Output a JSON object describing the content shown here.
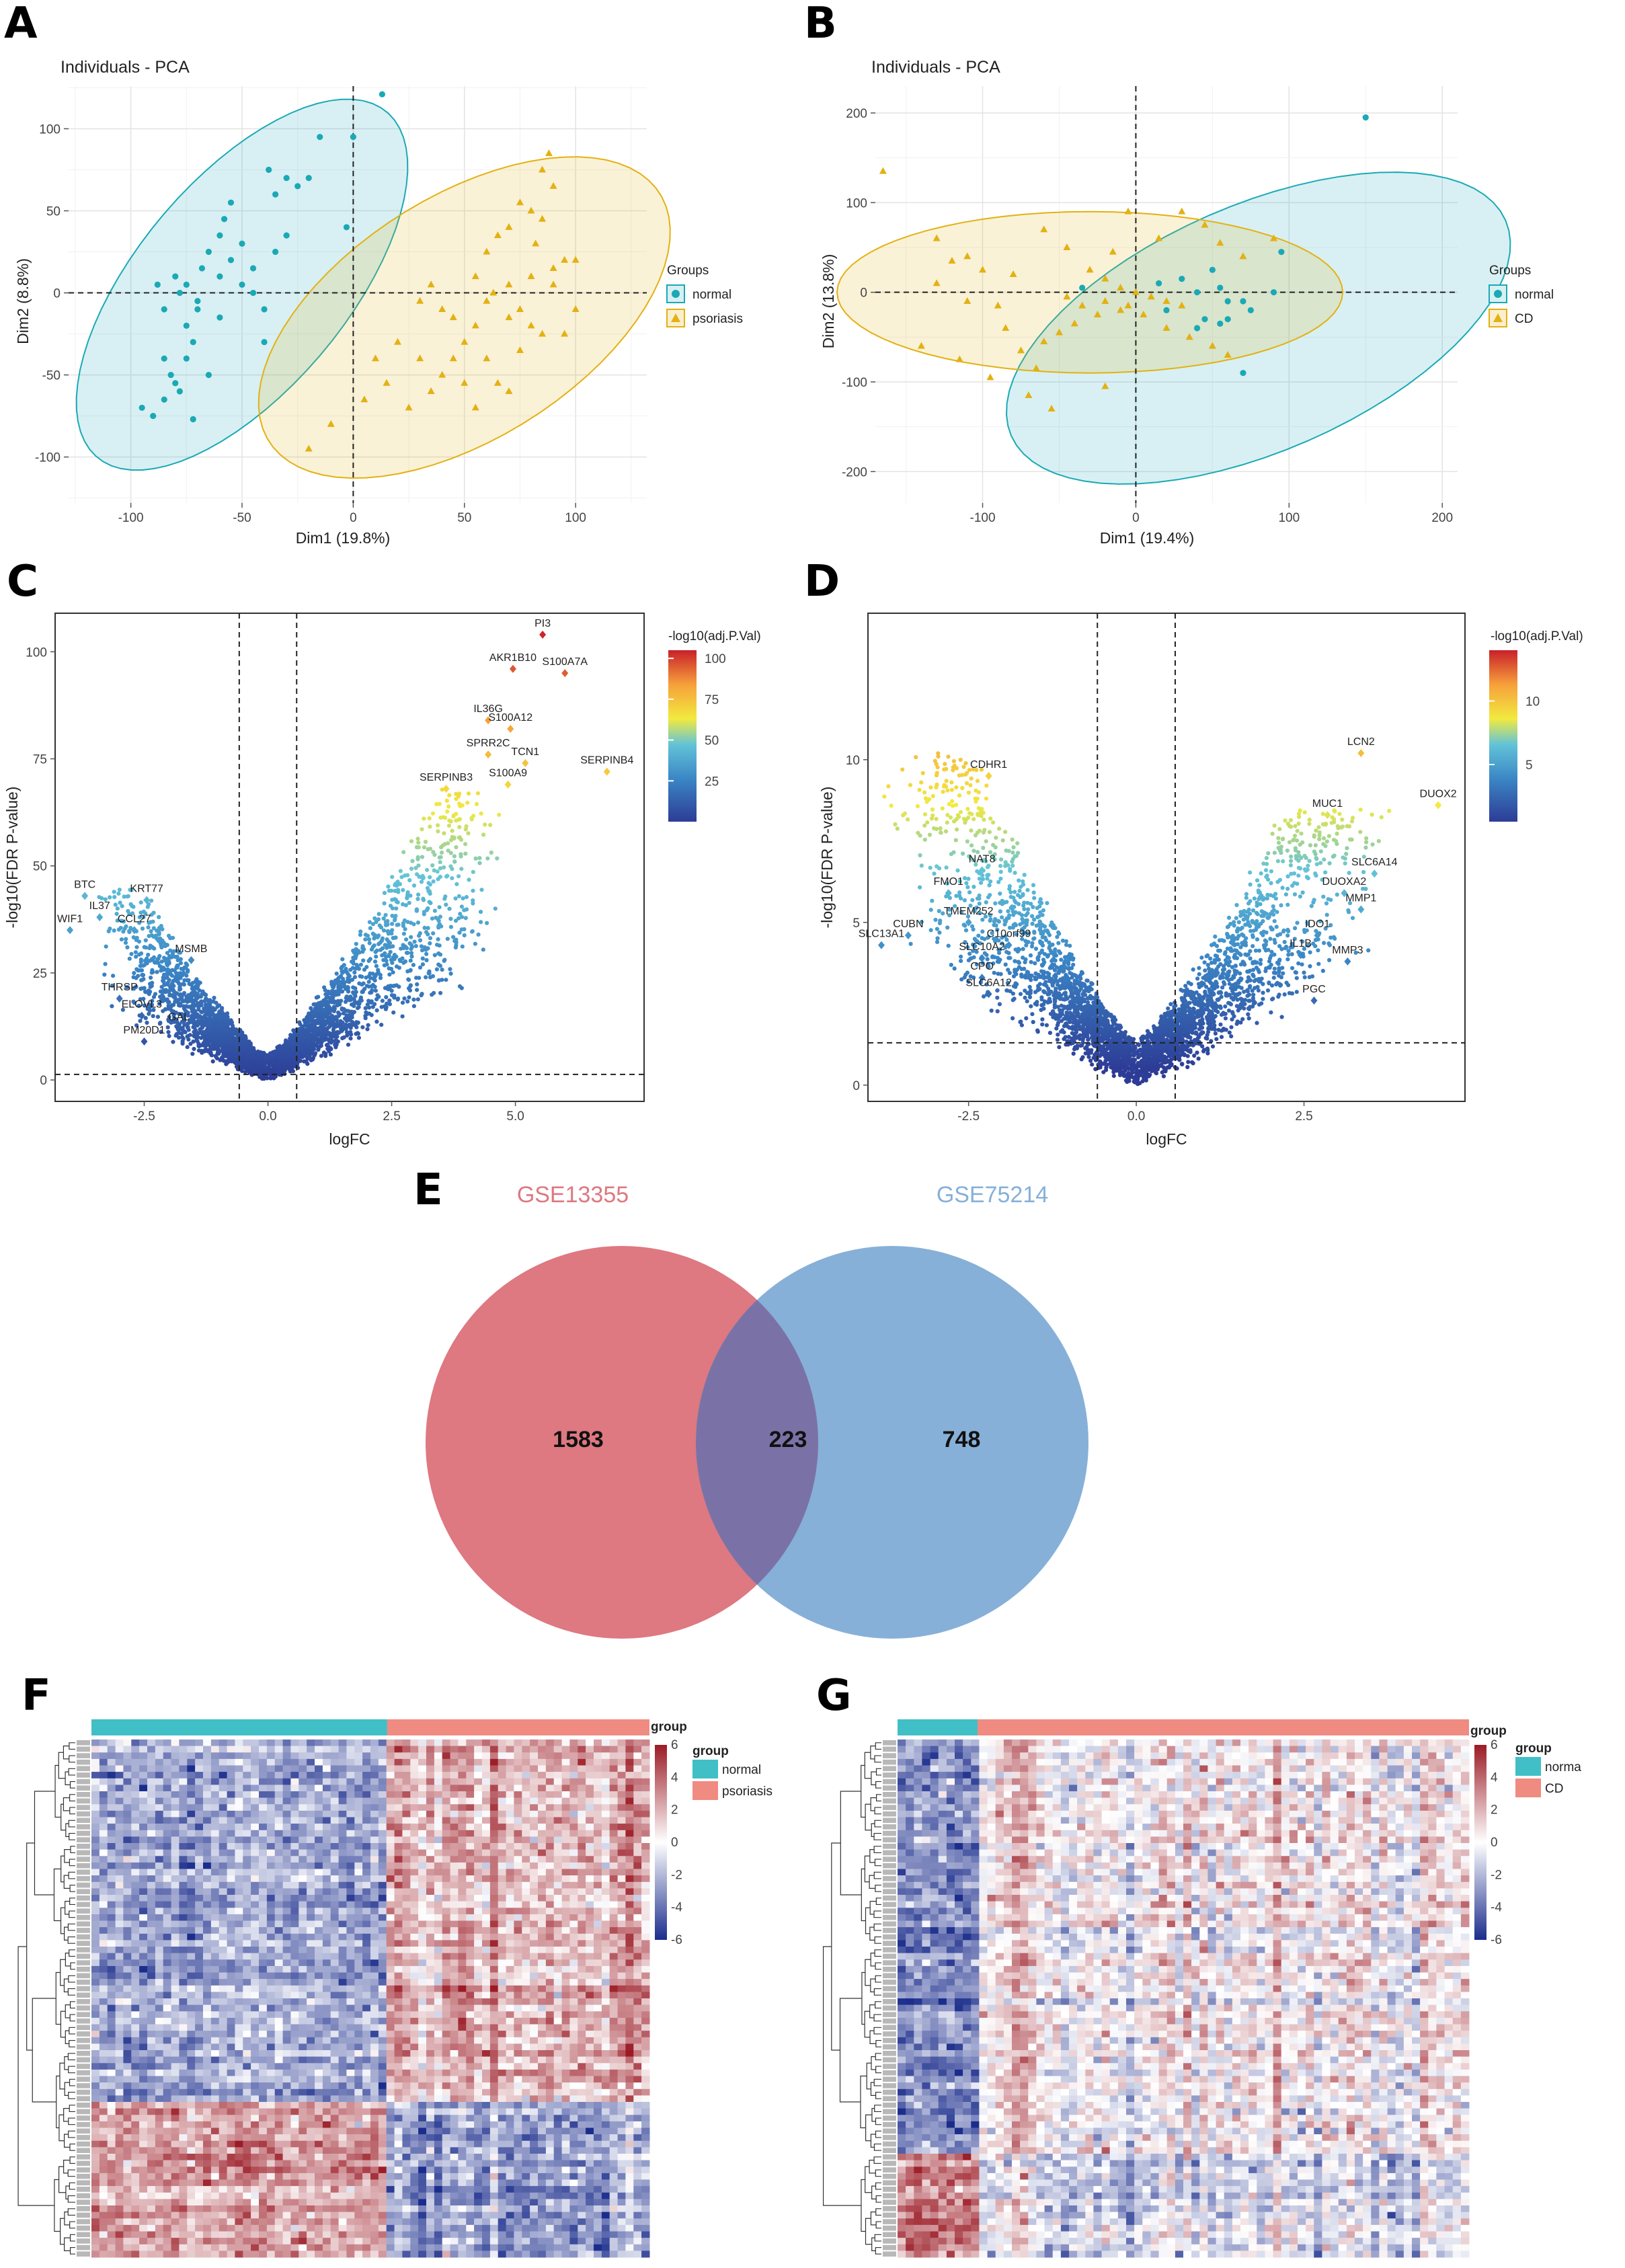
{
  "panels": {
    "A": "A",
    "B": "B",
    "C": "C",
    "D": "D",
    "E": "E",
    "F": "F",
    "G": "G"
  },
  "colors": {
    "normal": "#1aa9b5",
    "disease": "#e3b112",
    "venn_left": "#de7881",
    "venn_right": "#86b0d8",
    "venn_overlap": "#7a72a6",
    "heat_low": "#1b2d8c",
    "heat_mid": "#ffffff",
    "heat_high": "#9b1b25",
    "group_normal": "#40bfc6",
    "group_disease": "#f08b82"
  },
  "chart_data": [
    {
      "id": "A",
      "type": "scatter",
      "title": "Individuals - PCA",
      "xlabel": "Dim1 (19.8%)",
      "ylabel": "Dim2 (8.8%)",
      "xlim": [
        -128,
        132
      ],
      "ylim": [
        -128,
        126
      ],
      "xticks": [
        -100,
        -50,
        0,
        50,
        100
      ],
      "yticks": [
        -100,
        -50,
        0,
        50,
        100
      ],
      "legend_title": "Groups",
      "series": [
        {
          "name": "normal",
          "points": [
            [
              -95,
              -70
            ],
            [
              -90,
              -75
            ],
            [
              -85,
              -65
            ],
            [
              -85,
              -40
            ],
            [
              -82,
              -50
            ],
            [
              -80,
              -55
            ],
            [
              -78,
              -60
            ],
            [
              -75,
              -40
            ],
            [
              -72,
              -30
            ],
            [
              -75,
              -20
            ],
            [
              -70,
              -10
            ],
            [
              -85,
              -10
            ],
            [
              -88,
              5
            ],
            [
              -80,
              10
            ],
            [
              -78,
              0
            ],
            [
              -75,
              5
            ],
            [
              -70,
              -5
            ],
            [
              -68,
              15
            ],
            [
              -60,
              10
            ],
            [
              -55,
              20
            ],
            [
              -50,
              30
            ],
            [
              -65,
              25
            ],
            [
              -60,
              35
            ],
            [
              -58,
              45
            ],
            [
              -55,
              55
            ],
            [
              -50,
              5
            ],
            [
              -45,
              15
            ],
            [
              -45,
              0
            ],
            [
              -40,
              -10
            ],
            [
              -35,
              25
            ],
            [
              -30,
              35
            ],
            [
              -35,
              60
            ],
            [
              -38,
              75
            ],
            [
              -30,
              70
            ],
            [
              -25,
              65
            ],
            [
              -20,
              70
            ],
            [
              -15,
              95
            ],
            [
              0,
              95
            ],
            [
              -3,
              40
            ],
            [
              13,
              121
            ],
            [
              -72,
              -77
            ],
            [
              -60,
              -15
            ],
            [
              -40,
              -30
            ],
            [
              -65,
              -50
            ]
          ]
        },
        {
          "name": "psoriasis",
          "points": [
            [
              -20,
              -95
            ],
            [
              -10,
              -80
            ],
            [
              5,
              -65
            ],
            [
              15,
              -55
            ],
            [
              25,
              -70
            ],
            [
              35,
              -60
            ],
            [
              40,
              -50
            ],
            [
              45,
              -40
            ],
            [
              50,
              -30
            ],
            [
              55,
              -20
            ],
            [
              60,
              -40
            ],
            [
              65,
              -55
            ],
            [
              70,
              -60
            ],
            [
              75,
              -35
            ],
            [
              80,
              -20
            ],
            [
              85,
              -25
            ],
            [
              60,
              -5
            ],
            [
              70,
              5
            ],
            [
              80,
              10
            ],
            [
              90,
              15
            ],
            [
              95,
              20
            ],
            [
              100,
              20
            ],
            [
              85,
              45
            ],
            [
              80,
              50
            ],
            [
              75,
              55
            ],
            [
              70,
              40
            ],
            [
              65,
              35
            ],
            [
              85,
              75
            ],
            [
              90,
              65
            ],
            [
              88,
              85
            ],
            [
              82,
              30
            ],
            [
              40,
              -10
            ],
            [
              30,
              -5
            ],
            [
              35,
              5
            ],
            [
              55,
              10
            ],
            [
              63,
              0
            ],
            [
              45,
              -15
            ],
            [
              75,
              -10
            ],
            [
              60,
              25
            ],
            [
              95,
              -25
            ],
            [
              100,
              -10
            ],
            [
              20,
              -30
            ],
            [
              10,
              -40
            ],
            [
              30,
              -40
            ],
            [
              50,
              -55
            ],
            [
              70,
              -15
            ],
            [
              90,
              5
            ],
            [
              55,
              -70
            ]
          ]
        }
      ],
      "ellipses": [
        {
          "series": "normal",
          "center": [
            -50,
            5
          ],
          "semi_axes": [
            125,
            52
          ],
          "rotation_deg": 62
        },
        {
          "series": "psoriasis",
          "center": [
            50,
            -15
          ],
          "semi_axes": [
            118,
            65
          ],
          "rotation_deg": 48
        }
      ]
    },
    {
      "id": "B",
      "type": "scatter",
      "title": "Individuals - PCA",
      "xlabel": "Dim1 (19.4%)",
      "ylabel": "Dim2 (13.8%)",
      "xlim": [
        -170,
        210
      ],
      "ylim": [
        -235,
        230
      ],
      "xticks": [
        -100,
        0,
        100,
        200
      ],
      "yticks": [
        -200,
        -100,
        0,
        100,
        200
      ],
      "legend_title": "Groups",
      "series": [
        {
          "name": "normal",
          "points": [
            [
              150,
              195
            ],
            [
              95,
              45
            ],
            [
              60,
              -10
            ],
            [
              70,
              -10
            ],
            [
              90,
              0
            ],
            [
              55,
              5
            ],
            [
              45,
              -30
            ],
            [
              40,
              -40
            ],
            [
              70,
              -90
            ],
            [
              55,
              -35
            ],
            [
              15,
              10
            ],
            [
              40,
              0
            ],
            [
              30,
              15
            ],
            [
              60,
              -30
            ],
            [
              75,
              -20
            ],
            [
              -35,
              5
            ],
            [
              20,
              -20
            ],
            [
              50,
              25
            ]
          ]
        },
        {
          "name": "CD",
          "points": [
            [
              -165,
              135
            ],
            [
              -140,
              -60
            ],
            [
              -115,
              -75
            ],
            [
              -130,
              60
            ],
            [
              -110,
              40
            ],
            [
              -100,
              25
            ],
            [
              -80,
              20
            ],
            [
              -60,
              70
            ],
            [
              -45,
              50
            ],
            [
              -30,
              25
            ],
            [
              -20,
              15
            ],
            [
              -10,
              5
            ],
            [
              0,
              0
            ],
            [
              10,
              -5
            ],
            [
              20,
              -10
            ],
            [
              30,
              -15
            ],
            [
              -10,
              -20
            ],
            [
              -25,
              -25
            ],
            [
              -40,
              -35
            ],
            [
              -50,
              -45
            ],
            [
              -60,
              -55
            ],
            [
              -75,
              -65
            ],
            [
              -90,
              -15
            ],
            [
              -85,
              -40
            ],
            [
              -55,
              -130
            ],
            [
              -70,
              -115
            ],
            [
              -45,
              -5
            ],
            [
              -35,
              -15
            ],
            [
              -20,
              -10
            ],
            [
              -5,
              -15
            ],
            [
              5,
              -25
            ],
            [
              20,
              -40
            ],
            [
              35,
              -50
            ],
            [
              50,
              -60
            ],
            [
              60,
              -70
            ],
            [
              -5,
              90
            ],
            [
              30,
              90
            ],
            [
              45,
              75
            ],
            [
              55,
              55
            ],
            [
              70,
              40
            ],
            [
              90,
              60
            ],
            [
              -15,
              45
            ],
            [
              -110,
              -10
            ],
            [
              -130,
              10
            ],
            [
              -20,
              -105
            ],
            [
              -120,
              35
            ],
            [
              -95,
              -95
            ],
            [
              15,
              60
            ],
            [
              -65,
              -85
            ]
          ]
        }
      ],
      "ellipses": [
        {
          "series": "normal",
          "center": [
            80,
            -40
          ],
          "semi_axes": [
            210,
            115
          ],
          "rotation_deg": 48
        },
        {
          "series": "CD",
          "center": [
            -30,
            0
          ],
          "semi_axes": [
            165,
            90
          ],
          "rotation_deg": 0
        }
      ]
    },
    {
      "id": "C",
      "type": "scatter",
      "subtype": "volcano",
      "xlabel": "logFC",
      "ylabel": "-log10(FDR P-value)",
      "xlim": [
        -4.3,
        7.6
      ],
      "ylim": [
        -5,
        109
      ],
      "xticks": [
        -2.5,
        0.0,
        2.5,
        5.0
      ],
      "xtick_labels": [
        "-2.5",
        "0.0",
        "2.5",
        "5.0"
      ],
      "yticks": [
        0,
        25,
        50,
        75,
        100
      ],
      "vlines": [
        -0.58,
        0.58
      ],
      "hline": 1.3,
      "color_scale": {
        "title": "-log10(adj.P.Val)",
        "min": 0,
        "max": 105,
        "ticks": [
          25,
          50,
          75,
          100
        ]
      },
      "labeled_points": [
        {
          "gene": "PI3",
          "x": 5.55,
          "y": 104
        },
        {
          "gene": "AKR1B10",
          "x": 4.95,
          "y": 96
        },
        {
          "gene": "S100A7A",
          "x": 6.0,
          "y": 95
        },
        {
          "gene": "IL36G",
          "x": 4.45,
          "y": 84
        },
        {
          "gene": "S100A12",
          "x": 4.9,
          "y": 82
        },
        {
          "gene": "SERPINB4",
          "x": 6.85,
          "y": 72
        },
        {
          "gene": "SPRR2C",
          "x": 4.45,
          "y": 76
        },
        {
          "gene": "TCN1",
          "x": 5.2,
          "y": 74
        },
        {
          "gene": "SERPINB3",
          "x": 3.6,
          "y": 68
        },
        {
          "gene": "S100A9",
          "x": 4.85,
          "y": 69
        },
        {
          "gene": "BTC",
          "x": -3.7,
          "y": 43
        },
        {
          "gene": "KRT77",
          "x": -2.45,
          "y": 42
        },
        {
          "gene": "IL37",
          "x": -3.4,
          "y": 38
        },
        {
          "gene": "WIF1",
          "x": -4.0,
          "y": 35
        },
        {
          "gene": "CCL27",
          "x": -2.7,
          "y": 35
        },
        {
          "gene": "MSMB",
          "x": -1.55,
          "y": 28
        },
        {
          "gene": "THRSP",
          "x": -3.0,
          "y": 19
        },
        {
          "gene": "ELOVL3",
          "x": -2.55,
          "y": 15
        },
        {
          "gene": "GAL",
          "x": -1.8,
          "y": 12
        },
        {
          "gene": "PM20D1",
          "x": -2.5,
          "y": 9
        }
      ]
    },
    {
      "id": "D",
      "type": "scatter",
      "subtype": "volcano",
      "xlabel": "logFC",
      "ylabel": "-log10(FDR P-value)",
      "xlim": [
        -4.0,
        4.9
      ],
      "ylim": [
        -0.5,
        14.5
      ],
      "xticks": [
        -2.5,
        0.0,
        2.5
      ],
      "xtick_labels": [
        "-2.5",
        "0.0",
        "2.5"
      ],
      "yticks": [
        0,
        5,
        10
      ],
      "vlines": [
        -0.58,
        0.58
      ],
      "hline": 1.3,
      "color_scale": {
        "title": "-log10(adj.P.Val)",
        "min": 0.5,
        "max": 14,
        "ticks": [
          5,
          10
        ]
      },
      "labeled_points": [
        {
          "gene": "LCN2",
          "x": 3.35,
          "y": 10.2
        },
        {
          "gene": "DUOX2",
          "x": 4.5,
          "y": 8.6
        },
        {
          "gene": "MUC1",
          "x": 2.85,
          "y": 8.3
        },
        {
          "gene": "SLC6A14",
          "x": 3.55,
          "y": 6.5
        },
        {
          "gene": "DUOXA2",
          "x": 3.1,
          "y": 5.9
        },
        {
          "gene": "MMP1",
          "x": 3.35,
          "y": 5.4
        },
        {
          "gene": "IDO1",
          "x": 2.7,
          "y": 4.6
        },
        {
          "gene": "IL1B",
          "x": 2.45,
          "y": 4.0
        },
        {
          "gene": "MMP3",
          "x": 3.15,
          "y": 3.8
        },
        {
          "gene": "PGC",
          "x": 2.65,
          "y": 2.6
        },
        {
          "gene": "CDHR1",
          "x": -2.2,
          "y": 9.5
        },
        {
          "gene": "NAT8",
          "x": -2.3,
          "y": 6.6
        },
        {
          "gene": "FMO1",
          "x": -2.8,
          "y": 5.9
        },
        {
          "gene": "TMEM252",
          "x": -2.5,
          "y": 5.0
        },
        {
          "gene": "CUBN",
          "x": -3.4,
          "y": 4.6
        },
        {
          "gene": "SLC13A1",
          "x": -3.8,
          "y": 4.3
        },
        {
          "gene": "C10orf99",
          "x": -1.9,
          "y": 4.3
        },
        {
          "gene": "SLC10A2",
          "x": -2.3,
          "y": 3.9
        },
        {
          "gene": "CPO",
          "x": -2.3,
          "y": 3.3
        },
        {
          "gene": "SLC6A12",
          "x": -2.2,
          "y": 2.8
        }
      ]
    },
    {
      "id": "E",
      "type": "venn",
      "sets": [
        {
          "name": "GSE13355",
          "only": 1583
        },
        {
          "name": "GSE75214",
          "only": 748
        }
      ],
      "intersection": 223
    },
    {
      "id": "F",
      "type": "heatmap",
      "legend_title": "group",
      "groups": [
        "normal",
        "psoriasis"
      ],
      "scale_title": "group",
      "scale_ticks": [
        6,
        4,
        2,
        0,
        -2,
        -4,
        -6
      ],
      "group_split": 0.53
    },
    {
      "id": "G",
      "type": "heatmap",
      "legend_title": "group",
      "groups": [
        "norma",
        "CD"
      ],
      "scale_title": "group",
      "scale_ticks": [
        6,
        4,
        2,
        0,
        -2,
        -4,
        -6
      ],
      "group_split": 0.14
    }
  ]
}
